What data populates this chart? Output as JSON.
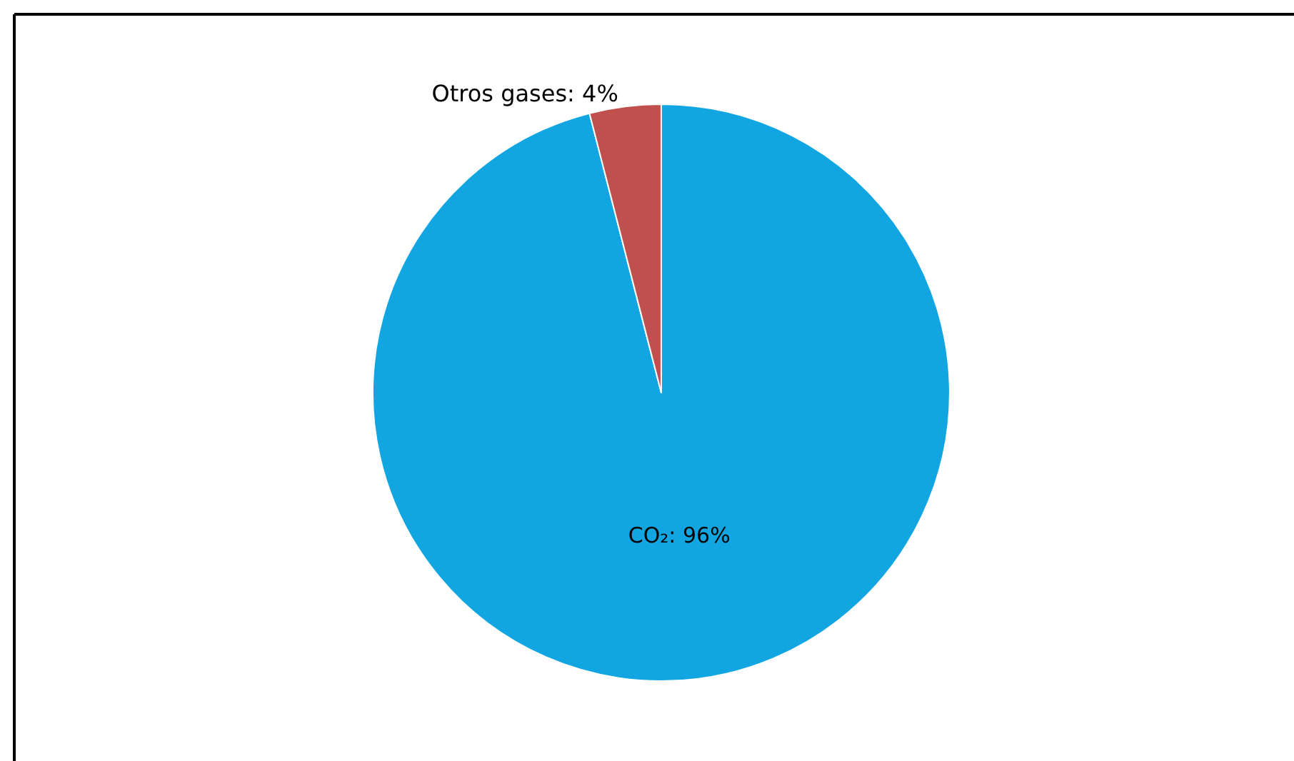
{
  "chart_data": {
    "type": "pie",
    "categories": [
      "CO₂",
      "Otros gases"
    ],
    "values": [
      96,
      4
    ],
    "value_labels": [
      "96%",
      "4%"
    ],
    "colors": [
      "#11a6e2",
      "#c0504d"
    ]
  }
}
